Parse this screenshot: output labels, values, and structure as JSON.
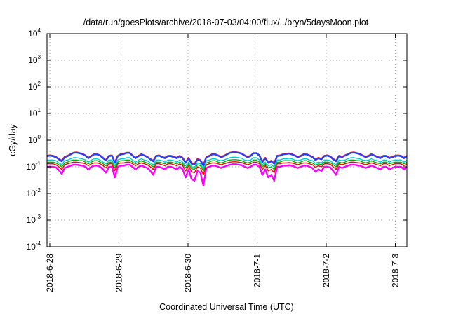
{
  "chart_data": {
    "type": "line",
    "title": "/data/run/goesPlots/archive/2018-07-03/04:00/flux/../bryn/5daysMoon.plot",
    "xlabel": "Coordinated Universal Time (UTC)",
    "ylabel": "cGy/day",
    "y_scale": "log",
    "ylim": [
      0.0001,
      10000
    ],
    "y_ticks": [
      {
        "base": "10",
        "exp": "4",
        "value": 10000
      },
      {
        "base": "10",
        "exp": "3",
        "value": 1000
      },
      {
        "base": "10",
        "exp": "2",
        "value": 100
      },
      {
        "base": "10",
        "exp": "1",
        "value": 10
      },
      {
        "base": "10",
        "exp": "0",
        "value": 1
      },
      {
        "base": "10",
        "exp": "-1",
        "value": 0.1
      },
      {
        "base": "10",
        "exp": "-2",
        "value": 0.01
      },
      {
        "base": "10",
        "exp": "-3",
        "value": 0.001
      },
      {
        "base": "10",
        "exp": "-4",
        "value": 0.0001
      }
    ],
    "x_range": [
      "2018-06-28",
      "2018-07-03 04:00"
    ],
    "x_ticks": [
      "2018-6-28",
      "2018-6-29",
      "2018-6-30",
      "2018-7-1",
      "2018-7-2",
      "2018-7-3"
    ],
    "grid": true,
    "series": [
      {
        "color": "#ff00ff",
        "values": [
          0.1,
          0.1,
          0.1,
          0.095,
          0.075,
          0.055,
          0.09,
          0.1,
          0.11,
          0.12,
          0.12,
          0.115,
          0.11,
          0.1,
          0.08,
          0.1,
          0.11,
          0.11,
          0.1,
          0.08,
          0.06,
          0.1,
          0.1,
          0.04,
          0.1,
          0.11,
          0.11,
          0.12,
          0.12,
          0.1,
          0.08,
          0.1,
          0.11,
          0.1,
          0.09,
          0.07,
          0.05,
          0.1,
          0.1,
          0.09,
          0.08,
          0.1,
          0.1,
          0.09,
          0.08,
          0.1,
          0.08,
          0.04,
          0.08,
          0.035,
          0.03,
          0.07,
          0.06,
          0.02,
          0.09,
          0.1,
          0.11,
          0.11,
          0.1,
          0.09,
          0.1,
          0.11,
          0.12,
          0.125,
          0.125,
          0.12,
          0.115,
          0.1,
          0.09,
          0.1,
          0.12,
          0.12,
          0.1,
          0.05,
          0.08,
          0.04,
          0.05,
          0.03,
          0.1,
          0.1,
          0.11,
          0.11,
          0.115,
          0.11,
          0.1,
          0.09,
          0.1,
          0.11,
          0.11,
          0.1,
          0.09,
          0.065,
          0.08,
          0.07,
          0.1,
          0.1,
          0.095,
          0.07,
          0.05,
          0.1,
          0.09,
          0.1,
          0.11,
          0.12,
          0.12,
          0.115,
          0.11,
          0.1,
          0.09,
          0.1,
          0.11,
          0.1,
          0.09,
          0.08,
          0.1,
          0.1,
          0.08,
          0.09,
          0.1,
          0.1,
          0.1,
          0.08,
          0.1
        ]
      },
      {
        "color": "#ff0000",
        "values": [
          0.13,
          0.13,
          0.13,
          0.12,
          0.1,
          0.08,
          0.12,
          0.13,
          0.14,
          0.15,
          0.15,
          0.145,
          0.14,
          0.13,
          0.11,
          0.13,
          0.14,
          0.14,
          0.13,
          0.11,
          0.09,
          0.13,
          0.13,
          0.07,
          0.13,
          0.14,
          0.14,
          0.15,
          0.15,
          0.13,
          0.11,
          0.13,
          0.14,
          0.13,
          0.12,
          0.1,
          0.08,
          0.13,
          0.13,
          0.12,
          0.11,
          0.13,
          0.13,
          0.12,
          0.11,
          0.13,
          0.11,
          0.07,
          0.11,
          0.065,
          0.06,
          0.1,
          0.09,
          0.05,
          0.12,
          0.13,
          0.14,
          0.14,
          0.13,
          0.12,
          0.13,
          0.14,
          0.15,
          0.155,
          0.155,
          0.15,
          0.145,
          0.13,
          0.12,
          0.13,
          0.15,
          0.15,
          0.13,
          0.08,
          0.11,
          0.07,
          0.08,
          0.06,
          0.13,
          0.13,
          0.14,
          0.14,
          0.145,
          0.14,
          0.13,
          0.12,
          0.13,
          0.14,
          0.14,
          0.13,
          0.12,
          0.095,
          0.11,
          0.1,
          0.13,
          0.13,
          0.125,
          0.1,
          0.08,
          0.13,
          0.12,
          0.13,
          0.14,
          0.15,
          0.15,
          0.145,
          0.14,
          0.13,
          0.12,
          0.13,
          0.14,
          0.13,
          0.12,
          0.11,
          0.13,
          0.13,
          0.11,
          0.12,
          0.13,
          0.13,
          0.13,
          0.11,
          0.13
        ]
      },
      {
        "color": "#00b000",
        "values": [
          0.15,
          0.15,
          0.15,
          0.14,
          0.12,
          0.1,
          0.14,
          0.15,
          0.17,
          0.18,
          0.18,
          0.17,
          0.17,
          0.15,
          0.13,
          0.15,
          0.17,
          0.17,
          0.15,
          0.13,
          0.11,
          0.15,
          0.15,
          0.09,
          0.15,
          0.17,
          0.17,
          0.18,
          0.18,
          0.15,
          0.13,
          0.15,
          0.17,
          0.15,
          0.14,
          0.12,
          0.1,
          0.15,
          0.15,
          0.14,
          0.13,
          0.15,
          0.15,
          0.14,
          0.13,
          0.15,
          0.13,
          0.09,
          0.13,
          0.085,
          0.08,
          0.12,
          0.11,
          0.07,
          0.14,
          0.15,
          0.17,
          0.17,
          0.15,
          0.14,
          0.15,
          0.17,
          0.18,
          0.185,
          0.185,
          0.18,
          0.17,
          0.15,
          0.14,
          0.15,
          0.18,
          0.18,
          0.15,
          0.1,
          0.13,
          0.09,
          0.1,
          0.08,
          0.15,
          0.15,
          0.17,
          0.17,
          0.17,
          0.17,
          0.15,
          0.14,
          0.15,
          0.17,
          0.17,
          0.15,
          0.14,
          0.115,
          0.13,
          0.12,
          0.15,
          0.15,
          0.145,
          0.12,
          0.1,
          0.15,
          0.14,
          0.15,
          0.17,
          0.18,
          0.18,
          0.17,
          0.17,
          0.15,
          0.14,
          0.15,
          0.17,
          0.15,
          0.14,
          0.13,
          0.15,
          0.15,
          0.13,
          0.14,
          0.15,
          0.15,
          0.15,
          0.13,
          0.15
        ]
      },
      {
        "color": "#00cccc",
        "values": [
          0.18,
          0.18,
          0.18,
          0.17,
          0.14,
          0.12,
          0.17,
          0.18,
          0.2,
          0.22,
          0.22,
          0.21,
          0.2,
          0.18,
          0.15,
          0.18,
          0.2,
          0.2,
          0.18,
          0.15,
          0.13,
          0.18,
          0.18,
          0.11,
          0.18,
          0.2,
          0.2,
          0.22,
          0.22,
          0.18,
          0.15,
          0.18,
          0.2,
          0.18,
          0.17,
          0.14,
          0.12,
          0.18,
          0.18,
          0.17,
          0.15,
          0.18,
          0.18,
          0.17,
          0.15,
          0.18,
          0.15,
          0.11,
          0.15,
          0.1,
          0.095,
          0.14,
          0.13,
          0.085,
          0.17,
          0.18,
          0.2,
          0.2,
          0.18,
          0.17,
          0.18,
          0.2,
          0.22,
          0.23,
          0.23,
          0.22,
          0.21,
          0.18,
          0.17,
          0.18,
          0.22,
          0.22,
          0.18,
          0.12,
          0.15,
          0.11,
          0.12,
          0.1,
          0.18,
          0.18,
          0.2,
          0.2,
          0.21,
          0.2,
          0.18,
          0.17,
          0.18,
          0.2,
          0.2,
          0.18,
          0.17,
          0.135,
          0.15,
          0.14,
          0.18,
          0.18,
          0.17,
          0.14,
          0.12,
          0.18,
          0.17,
          0.18,
          0.2,
          0.22,
          0.22,
          0.21,
          0.2,
          0.18,
          0.17,
          0.18,
          0.2,
          0.18,
          0.17,
          0.15,
          0.18,
          0.18,
          0.15,
          0.17,
          0.18,
          0.18,
          0.18,
          0.15,
          0.18
        ]
      },
      {
        "color": "#ff2020",
        "values": [
          0.26,
          0.27,
          0.26,
          0.24,
          0.2,
          0.17,
          0.24,
          0.26,
          0.3,
          0.34,
          0.35,
          0.33,
          0.31,
          0.27,
          0.22,
          0.26,
          0.3,
          0.3,
          0.27,
          0.22,
          0.18,
          0.26,
          0.27,
          0.15,
          0.26,
          0.3,
          0.31,
          0.34,
          0.34,
          0.27,
          0.22,
          0.26,
          0.3,
          0.27,
          0.24,
          0.2,
          0.17,
          0.26,
          0.27,
          0.24,
          0.22,
          0.26,
          0.26,
          0.24,
          0.22,
          0.26,
          0.22,
          0.15,
          0.22,
          0.14,
          0.13,
          0.2,
          0.18,
          0.12,
          0.24,
          0.26,
          0.3,
          0.3,
          0.27,
          0.24,
          0.26,
          0.3,
          0.34,
          0.36,
          0.36,
          0.34,
          0.32,
          0.27,
          0.24,
          0.26,
          0.33,
          0.33,
          0.27,
          0.16,
          0.22,
          0.15,
          0.17,
          0.14,
          0.26,
          0.27,
          0.3,
          0.31,
          0.32,
          0.3,
          0.27,
          0.24,
          0.26,
          0.3,
          0.3,
          0.27,
          0.24,
          0.19,
          0.22,
          0.2,
          0.26,
          0.27,
          0.25,
          0.2,
          0.17,
          0.26,
          0.24,
          0.27,
          0.3,
          0.34,
          0.35,
          0.33,
          0.31,
          0.27,
          0.24,
          0.26,
          0.3,
          0.27,
          0.24,
          0.22,
          0.26,
          0.26,
          0.22,
          0.24,
          0.26,
          0.27,
          0.26,
          0.22,
          0.26
        ]
      },
      {
        "color": "#2040ff",
        "values": [
          0.25,
          0.26,
          0.25,
          0.23,
          0.19,
          0.16,
          0.23,
          0.25,
          0.29,
          0.33,
          0.34,
          0.32,
          0.3,
          0.26,
          0.21,
          0.25,
          0.29,
          0.29,
          0.26,
          0.21,
          0.17,
          0.25,
          0.26,
          0.14,
          0.25,
          0.29,
          0.3,
          0.33,
          0.33,
          0.26,
          0.21,
          0.25,
          0.29,
          0.26,
          0.23,
          0.19,
          0.16,
          0.25,
          0.26,
          0.23,
          0.21,
          0.25,
          0.25,
          0.23,
          0.21,
          0.25,
          0.21,
          0.14,
          0.21,
          0.13,
          0.12,
          0.19,
          0.17,
          0.11,
          0.23,
          0.25,
          0.29,
          0.29,
          0.26,
          0.23,
          0.25,
          0.29,
          0.33,
          0.35,
          0.35,
          0.33,
          0.31,
          0.26,
          0.23,
          0.25,
          0.32,
          0.32,
          0.26,
          0.15,
          0.21,
          0.14,
          0.16,
          0.13,
          0.25,
          0.26,
          0.29,
          0.3,
          0.31,
          0.29,
          0.26,
          0.23,
          0.25,
          0.29,
          0.29,
          0.26,
          0.23,
          0.18,
          0.21,
          0.19,
          0.25,
          0.26,
          0.24,
          0.19,
          0.16,
          0.25,
          0.23,
          0.26,
          0.29,
          0.33,
          0.34,
          0.32,
          0.3,
          0.26,
          0.23,
          0.25,
          0.29,
          0.26,
          0.23,
          0.21,
          0.25,
          0.25,
          0.21,
          0.23,
          0.25,
          0.26,
          0.25,
          0.21,
          0.25
        ]
      }
    ]
  }
}
